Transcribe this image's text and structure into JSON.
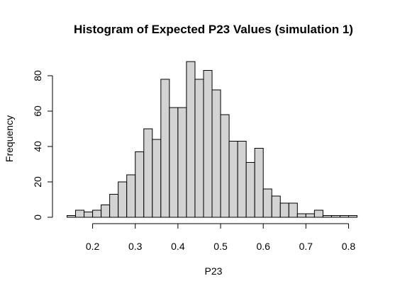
{
  "chart_data": {
    "type": "bar",
    "title": "Histogram of Expected P23 Values (simulation 1)",
    "xlabel": "P23",
    "ylabel": "Frequency",
    "bin_start": 0.14,
    "bin_width": 0.02,
    "values": [
      1,
      4,
      3,
      4,
      7,
      13,
      20,
      24,
      37,
      50,
      44,
      78,
      62,
      62,
      88,
      78,
      83,
      72,
      58,
      43,
      43,
      31,
      39,
      16,
      12,
      8,
      8,
      2,
      2,
      4,
      1,
      1,
      1,
      1
    ],
    "xlim": [
      0.14,
      0.82
    ],
    "ylim": [
      0,
      90
    ],
    "x_ticks": [
      0.2,
      0.3,
      0.4,
      0.5,
      0.6,
      0.7,
      0.8
    ],
    "y_ticks": [
      0,
      20,
      40,
      60,
      80
    ],
    "bar_fill": "#d3d3d3",
    "bar_stroke": "#000000",
    "grid": false
  }
}
